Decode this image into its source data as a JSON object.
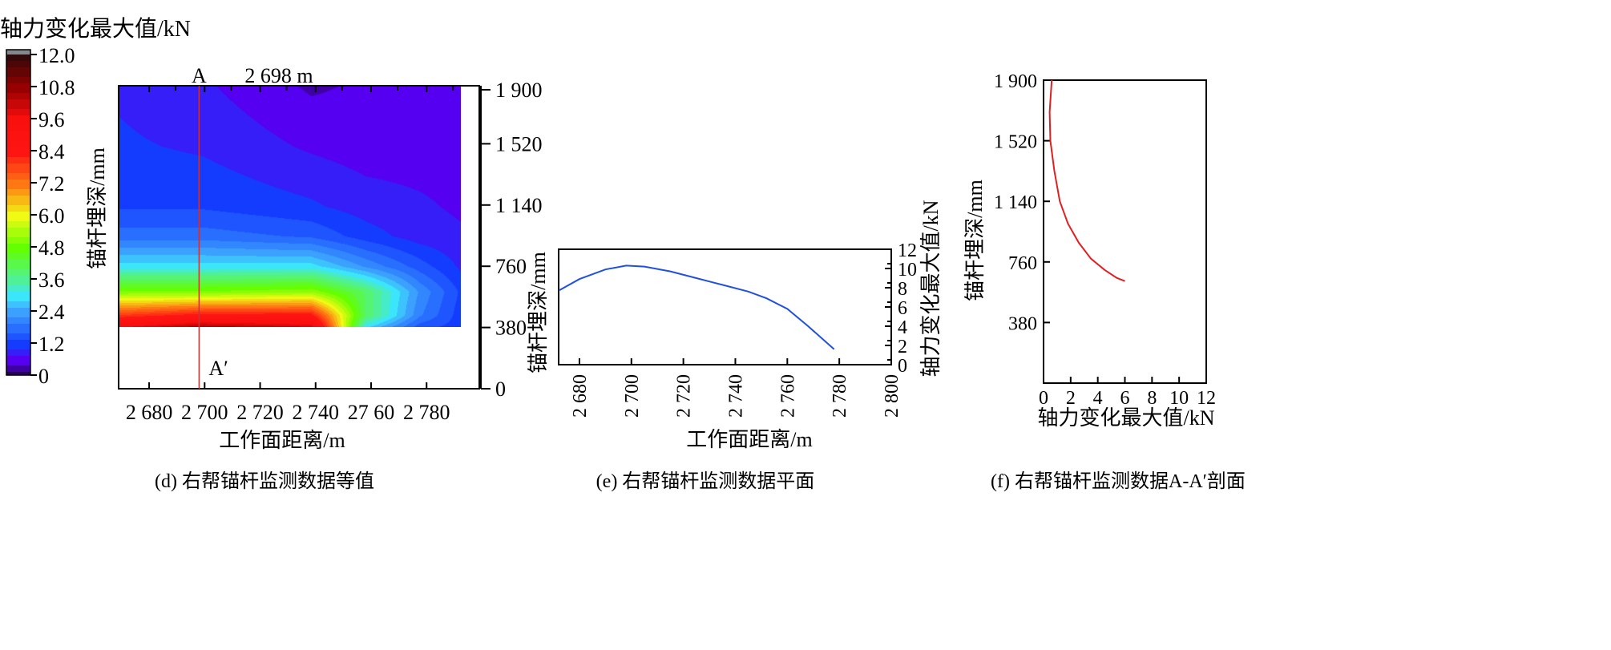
{
  "chart_data": [
    {
      "type": "heatmap",
      "panel_caption": "(d) 右帮锚杆监测数据等值",
      "colorbar": {
        "title": "轴力变化最大值/kN",
        "ticks": [
          "12.0",
          "10.8",
          "9.6",
          "8.4",
          "7.2",
          "6.0",
          "4.8",
          "3.6",
          "2.4",
          "1.2",
          "0"
        ],
        "range": [
          0,
          12
        ]
      },
      "xlabel": "工作面距离/m",
      "ylabel": "锚杆埋深/mm",
      "xticks": [
        "2 680",
        "2 700",
        "2 720",
        "2 740",
        "27 60",
        "2 780"
      ],
      "xtick_values": [
        2680,
        2700,
        2720,
        2740,
        2760,
        2780
      ],
      "xlim": [
        2669,
        2799
      ],
      "yticks": [
        "1 900",
        "1 520",
        "1 140",
        "760",
        "380",
        "0"
      ],
      "ytick_values": [
        1900,
        1520,
        1140,
        760,
        380,
        0
      ],
      "ylim": [
        0,
        1900
      ],
      "section_line": {
        "x": 2698,
        "label_top": "A",
        "label_bottom": "A′",
        "position_label": "2 698 m",
        "color": "#d03030"
      },
      "grid_x": [
        2669,
        2700,
        2740,
        2760,
        2780,
        2795
      ],
      "grid_depth": [
        380,
        450,
        600,
        760,
        950,
        1140,
        1520,
        1900
      ],
      "grid_values": [
        [
          9.6,
          10.5,
          10.0,
          3.0,
          1.5,
          1.2
        ],
        [
          8.0,
          8.5,
          8.5,
          4.0,
          2.0,
          1.2
        ],
        [
          5.0,
          5.0,
          5.2,
          4.0,
          2.2,
          1.3
        ],
        [
          3.0,
          3.0,
          3.0,
          2.2,
          1.5,
          1.0
        ],
        [
          1.8,
          1.8,
          1.6,
          1.2,
          0.9,
          0.8
        ],
        [
          1.3,
          1.3,
          1.1,
          0.9,
          0.8,
          0.7
        ],
        [
          1.1,
          1.0,
          0.7,
          0.6,
          0.6,
          0.6
        ],
        [
          1.0,
          0.8,
          0.4,
          0.5,
          0.6,
          0.7
        ]
      ]
    },
    {
      "type": "line",
      "panel_caption": "(e) 右帮锚杆监测数据平面",
      "xlabel": "工作面距离/m",
      "ylabel_left": "锚杆埋深/mm",
      "ylabel_right": "轴力变化最大值/kN",
      "xticks": [
        "2 680",
        "2 700",
        "2 720",
        "2 740",
        "2 760",
        "2 780",
        "2 800"
      ],
      "xtick_values": [
        2680,
        2700,
        2720,
        2740,
        2760,
        2780,
        2800
      ],
      "xlim": [
        2672,
        2800
      ],
      "yticks": [
        "0",
        "2",
        "4",
        "6",
        "8",
        "10",
        "12"
      ],
      "ylim": [
        0,
        12
      ],
      "series": [
        {
          "name": "轴力变化最大值",
          "color": "#2050e0",
          "x": [
            2672,
            2680,
            2690,
            2698,
            2705,
            2715,
            2725,
            2735,
            2745,
            2752,
            2760,
            2768,
            2778
          ],
          "y": [
            7.7,
            8.9,
            9.9,
            10.3,
            10.2,
            9.7,
            9.0,
            8.3,
            7.6,
            6.9,
            5.8,
            4.0,
            1.6
          ]
        }
      ]
    },
    {
      "type": "line",
      "panel_caption": "(f) 右帮锚杆监测数据A-A′剖面",
      "xlabel": "轴力变化最大值/kN",
      "ylabel": "锚杆埋深/mm",
      "xticks": [
        "0",
        "2",
        "4",
        "6",
        "8",
        "10",
        "12"
      ],
      "xlim": [
        0,
        12
      ],
      "yticks": [
        "1 900",
        "1 520",
        "1 140",
        "760",
        "380"
      ],
      "ytick_values": [
        1900,
        1520,
        1140,
        760,
        380
      ],
      "ylim": [
        0,
        1900
      ],
      "series": [
        {
          "name": "A-A′",
          "color": "#e02020",
          "x": [
            0.6,
            0.45,
            0.5,
            0.8,
            1.2,
            1.8,
            2.6,
            3.5,
            4.5,
            5.4,
            6.0
          ],
          "y": [
            1900,
            1700,
            1520,
            1330,
            1140,
            1000,
            880,
            780,
            710,
            660,
            640
          ]
        }
      ]
    }
  ]
}
